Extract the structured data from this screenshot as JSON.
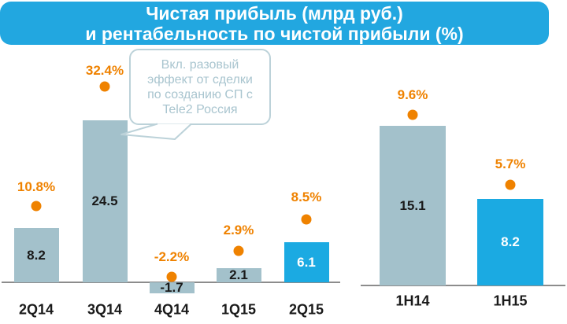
{
  "header": {
    "title_line1": "Чистая прибыль (млрд руб.)",
    "title_line2": "и рентабельность по чистой прибыли (%)"
  },
  "callout": {
    "text": "Вкл. разовый\nэффект от сделки\nпо созданию СП с\nTele2 Россия"
  },
  "colors": {
    "header_bg": "#22A7E0",
    "title_text": "#FFFFFF",
    "bar_gray": "#A3C1CB",
    "bar_blue": "#1BAAE2",
    "percent_orange": "#EF8200",
    "axis_gray": "#8C8C8C",
    "value_text_dark": "#1A1A1A",
    "value_text_on_blue": "#FFFFFF",
    "callout_border": "#BCD2D9",
    "callout_text": "#A9C5CF"
  },
  "chart_data": {
    "type": "bar",
    "title": "Чистая прибыль (млрд руб.) и рентабельность по чистой прибыли (%)",
    "legend_position": "none",
    "grid": false,
    "annotation": "Вкл. разовый эффект от сделки по созданию СП с Tele2 Россия",
    "annotation_target": "3Q14",
    "groups": [
      {
        "name": "quarterly",
        "categories": [
          "2Q14",
          "3Q14",
          "4Q14",
          "1Q15",
          "2Q15"
        ],
        "series": [
          {
            "name": "Чистая прибыль (млрд руб.)",
            "type": "bar",
            "values": [
              8.2,
              24.5,
              -1.7,
              2.1,
              6.1
            ]
          },
          {
            "name": "Рентабельность по чистой прибыли (%)",
            "type": "point",
            "values": [
              10.8,
              32.4,
              -2.2,
              2.9,
              8.5
            ]
          }
        ],
        "highlight_category": "2Q15"
      },
      {
        "name": "half-year",
        "categories": [
          "1H14",
          "1H15"
        ],
        "series": [
          {
            "name": "Чистая прибыль (млрд руб.)",
            "type": "bar",
            "values": [
              15.1,
              8.2
            ]
          },
          {
            "name": "Рентабельность по чистой прибыли (%)",
            "type": "point",
            "values": [
              9.6,
              5.7
            ]
          }
        ],
        "highlight_category": "1H15"
      }
    ]
  }
}
